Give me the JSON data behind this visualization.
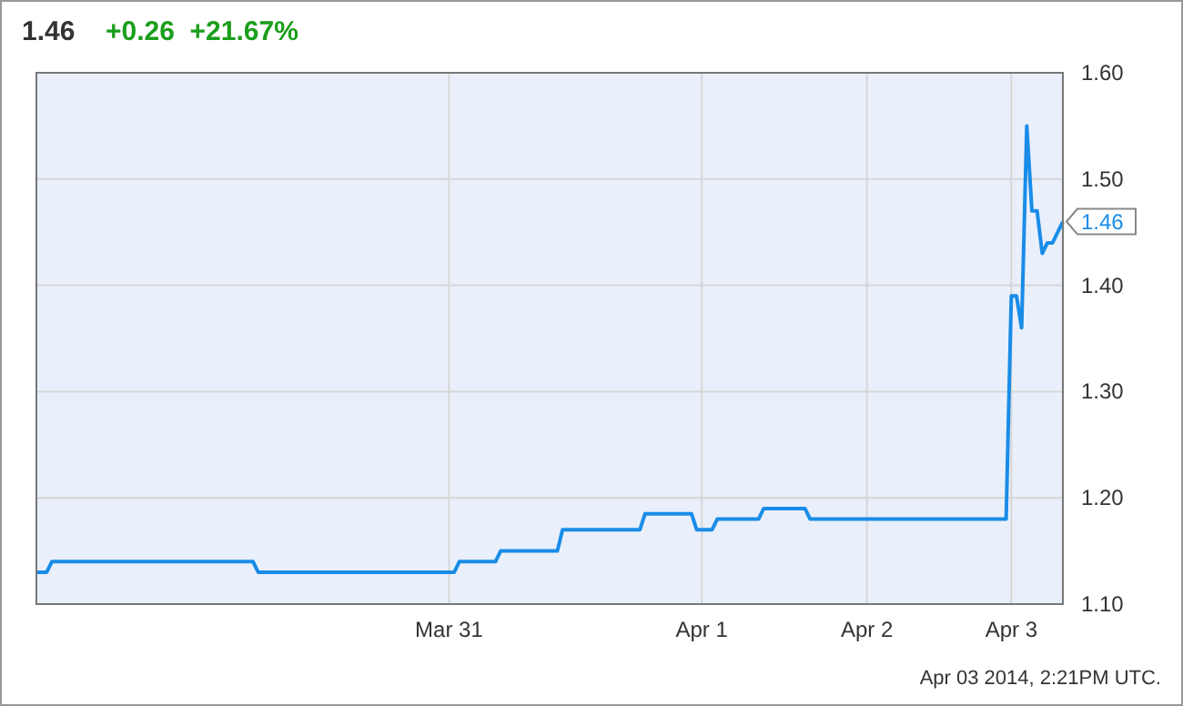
{
  "chart_data": {
    "type": "line",
    "title": "1.46",
    "subtitle": "+0.26  +21.67%",
    "categories": [
      null,
      null,
      null,
      null,
      null,
      null,
      null,
      null,
      null,
      null,
      null,
      null,
      null,
      null,
      null,
      null,
      null,
      null,
      null,
      null,
      null,
      null,
      null,
      null,
      null,
      null,
      null,
      null,
      null,
      null,
      null,
      null,
      null,
      null,
      null,
      null,
      null,
      null,
      null,
      null,
      null,
      null,
      null,
      null,
      null,
      null,
      null,
      null,
      null,
      null,
      null,
      null,
      null,
      null,
      null,
      null,
      null,
      null,
      null,
      null,
      null,
      null,
      null,
      null,
      null,
      null,
      null,
      null,
      null,
      null,
      null,
      null,
      null,
      null,
      null,
      null,
      null,
      null,
      null,
      null,
      "Mar 31",
      null,
      null,
      null,
      null,
      null,
      null,
      null,
      null,
      null,
      null,
      null,
      null,
      null,
      null,
      null,
      null,
      null,
      null,
      null,
      null,
      null,
      null,
      null,
      null,
      null,
      null,
      null,
      null,
      null,
      null,
      null,
      null,
      null,
      null,
      null,
      null,
      null,
      null,
      null,
      null,
      null,
      null,
      null,
      null,
      null,
      null,
      null,
      null,
      "Apr 1",
      null,
      null,
      null,
      null,
      null,
      null,
      null,
      null,
      null,
      null,
      null,
      null,
      null,
      null,
      null,
      null,
      null,
      null,
      null,
      null,
      null,
      null,
      null,
      null,
      null,
      null,
      null,
      null,
      null,
      null,
      null,
      "Apr 2",
      null,
      null,
      null,
      null,
      null,
      null,
      null,
      null,
      null,
      null,
      null,
      null,
      null,
      null,
      null,
      null,
      null,
      null,
      null,
      null,
      null,
      null,
      null,
      null,
      null,
      null,
      null,
      "Apr 3",
      null,
      null,
      null,
      null,
      null,
      null,
      null,
      null,
      null,
      null
    ],
    "series": [
      {
        "color": "#1a8ce8",
        "values": [
          1.13,
          1.13,
          1.13,
          1.14,
          1.14,
          1.14,
          1.14,
          1.14,
          1.14,
          1.14,
          1.14,
          1.14,
          1.14,
          1.14,
          1.14,
          1.14,
          1.14,
          1.14,
          1.14,
          1.14,
          1.14,
          1.14,
          1.14,
          1.14,
          1.14,
          1.14,
          1.14,
          1.14,
          1.14,
          1.14,
          1.14,
          1.14,
          1.14,
          1.14,
          1.14,
          1.14,
          1.14,
          1.14,
          1.14,
          1.14,
          1.14,
          1.14,
          1.14,
          1.13,
          1.13,
          1.13,
          1.13,
          1.13,
          1.13,
          1.13,
          1.13,
          1.13,
          1.13,
          1.13,
          1.13,
          1.13,
          1.13,
          1.13,
          1.13,
          1.13,
          1.13,
          1.13,
          1.13,
          1.13,
          1.13,
          1.13,
          1.13,
          1.13,
          1.13,
          1.13,
          1.13,
          1.13,
          1.13,
          1.13,
          1.13,
          1.13,
          1.13,
          1.13,
          1.13,
          1.13,
          1.13,
          1.13,
          1.14,
          1.14,
          1.14,
          1.14,
          1.14,
          1.14,
          1.14,
          1.14,
          1.15,
          1.15,
          1.15,
          1.15,
          1.15,
          1.15,
          1.15,
          1.15,
          1.15,
          1.15,
          1.15,
          1.15,
          1.17,
          1.17,
          1.17,
          1.17,
          1.17,
          1.17,
          1.17,
          1.17,
          1.17,
          1.17,
          1.17,
          1.17,
          1.17,
          1.17,
          1.17,
          1.17,
          1.185,
          1.185,
          1.185,
          1.185,
          1.185,
          1.185,
          1.185,
          1.185,
          1.185,
          1.185,
          1.17,
          1.17,
          1.17,
          1.17,
          1.18,
          1.18,
          1.18,
          1.18,
          1.18,
          1.18,
          1.18,
          1.18,
          1.18,
          1.19,
          1.19,
          1.19,
          1.19,
          1.19,
          1.19,
          1.19,
          1.19,
          1.19,
          1.18,
          1.18,
          1.18,
          1.18,
          1.18,
          1.18,
          1.18,
          1.18,
          1.18,
          1.18,
          1.18,
          1.18,
          1.18,
          1.18,
          1.18,
          1.18,
          1.18,
          1.18,
          1.18,
          1.18,
          1.18,
          1.18,
          1.18,
          1.18,
          1.18,
          1.18,
          1.18,
          1.18,
          1.18,
          1.18,
          1.18,
          1.18,
          1.18,
          1.18,
          1.18,
          1.18,
          1.18,
          1.18,
          1.18,
          1.39,
          1.39,
          1.36,
          1.55,
          1.47,
          1.47,
          1.43,
          1.44,
          1.44,
          1.45,
          1.46
        ]
      }
    ],
    "ylim": [
      1.1,
      1.6
    ],
    "yticks": [
      {
        "value": 1.1,
        "label": "1.10"
      },
      {
        "value": 1.2,
        "label": "1.20"
      },
      {
        "value": 1.3,
        "label": "1.30"
      },
      {
        "value": 1.4,
        "label": "1.40"
      },
      {
        "value": 1.5,
        "label": "1.50"
      },
      {
        "value": 1.6,
        "label": "1.60"
      }
    ],
    "grid": true,
    "marker": "none",
    "line_style": "solid",
    "annotations": [
      {
        "text": "1.46",
        "y": 1.46
      },
      "Apr 03 2014, 2:21PM UTC."
    ]
  }
}
